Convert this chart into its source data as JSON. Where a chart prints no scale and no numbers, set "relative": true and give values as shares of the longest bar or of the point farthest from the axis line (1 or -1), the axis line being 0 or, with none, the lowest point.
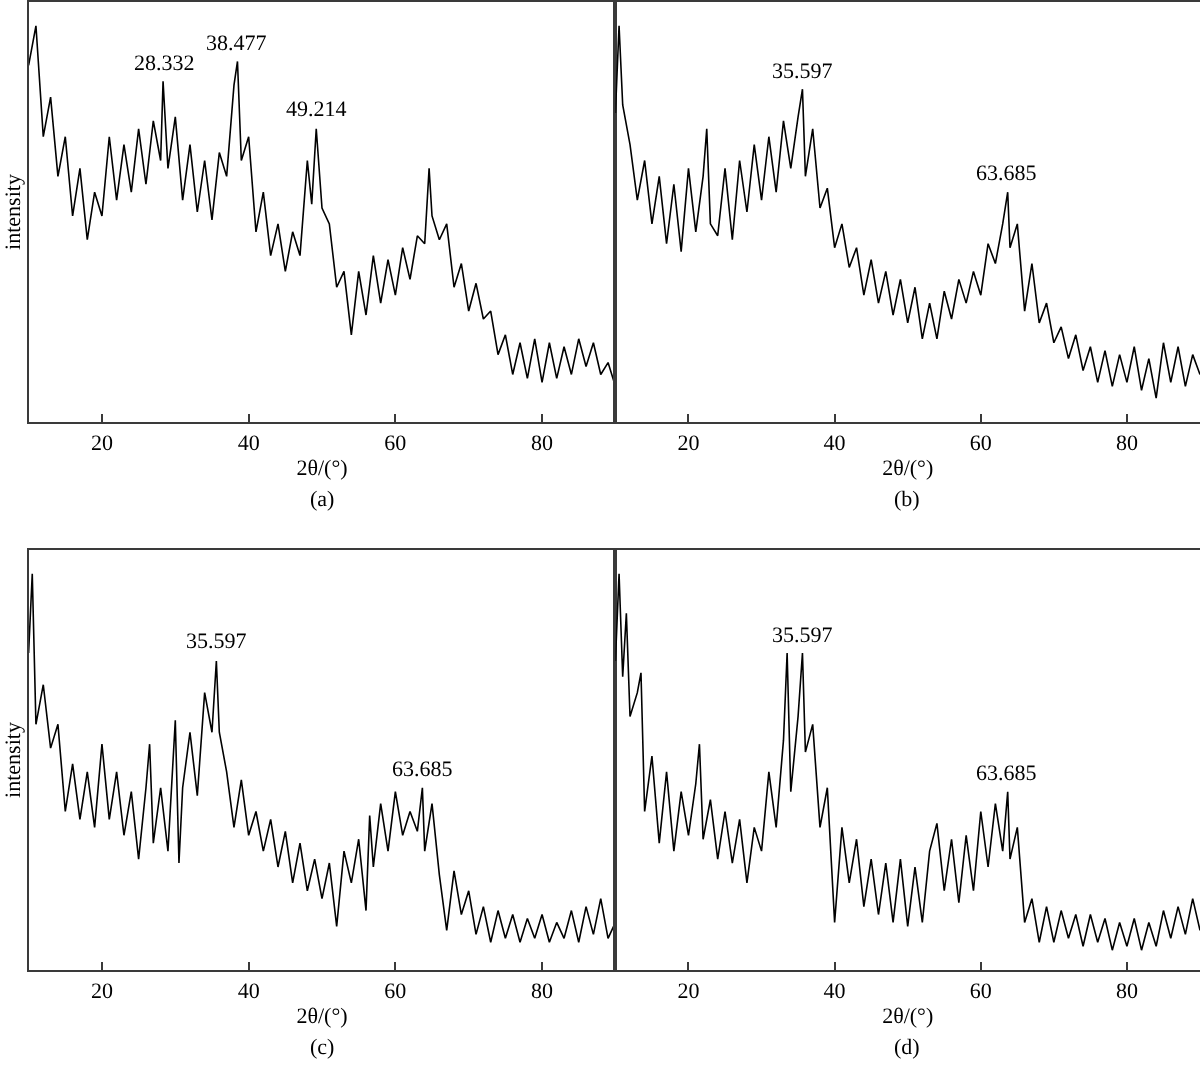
{
  "chart_data": [
    {
      "type": "line",
      "relative": true,
      "tick_labels": "x",
      "xlabel": "2θ/(°)",
      "ylabel": "intensity",
      "xlim": [
        10,
        90
      ],
      "xticks": [
        20,
        40,
        60,
        80
      ],
      "x": [
        10,
        11,
        12,
        13,
        14,
        15,
        16,
        17,
        18,
        19,
        20,
        21,
        22,
        23,
        24,
        25,
        26,
        27,
        28,
        28.332,
        29,
        30,
        31,
        32,
        33,
        34,
        35,
        36,
        37,
        38,
        38.477,
        39,
        40,
        41,
        42,
        43,
        44,
        45,
        46,
        47,
        48,
        48.6,
        49.214,
        50,
        51,
        52,
        53,
        54,
        55,
        56,
        57,
        58,
        59,
        60,
        61,
        62,
        63,
        64,
        64.6,
        65,
        66,
        67,
        68,
        69,
        70,
        71,
        72,
        73,
        74,
        75,
        76,
        77,
        78,
        79,
        80,
        81,
        82,
        83,
        84,
        85,
        86,
        87,
        88,
        89,
        90
      ],
      "series": [
        {
          "color": "#000000",
          "values": [
            0.9,
            1.0,
            0.72,
            0.82,
            0.62,
            0.72,
            0.52,
            0.64,
            0.46,
            0.58,
            0.52,
            0.72,
            0.56,
            0.7,
            0.58,
            0.74,
            0.6,
            0.76,
            0.66,
            0.86,
            0.64,
            0.77,
            0.56,
            0.7,
            0.53,
            0.66,
            0.51,
            0.68,
            0.62,
            0.85,
            0.91,
            0.66,
            0.72,
            0.48,
            0.58,
            0.42,
            0.5,
            0.38,
            0.48,
            0.42,
            0.66,
            0.55,
            0.74,
            0.54,
            0.5,
            0.34,
            0.38,
            0.22,
            0.38,
            0.27,
            0.42,
            0.3,
            0.41,
            0.32,
            0.44,
            0.36,
            0.47,
            0.45,
            0.64,
            0.52,
            0.46,
            0.5,
            0.34,
            0.4,
            0.28,
            0.35,
            0.26,
            0.28,
            0.17,
            0.22,
            0.12,
            0.2,
            0.11,
            0.21,
            0.1,
            0.2,
            0.11,
            0.19,
            0.12,
            0.21,
            0.14,
            0.2,
            0.12,
            0.15,
            0.09
          ]
        }
      ],
      "annotations": [
        {
          "text": "28.332",
          "x": 28.332,
          "y": 0.86
        },
        {
          "text": "38.477",
          "x": 38.477,
          "y": 0.91
        },
        {
          "text": "49.214",
          "x": 49.214,
          "y": 0.74
        },
        "(a)"
      ]
    },
    {
      "type": "line",
      "relative": true,
      "tick_labels": "x",
      "xlabel": "2θ/(°)",
      "xlim": [
        10,
        90
      ],
      "xticks": [
        20,
        40,
        60,
        80
      ],
      "x": [
        10,
        10.5,
        11,
        12,
        13,
        14,
        15,
        16,
        17,
        18,
        19,
        20,
        21,
        22,
        22.5,
        23,
        24,
        25,
        26,
        27,
        28,
        29,
        30,
        31,
        32,
        33,
        34,
        35,
        35.597,
        36,
        37,
        38,
        39,
        40,
        41,
        42,
        43,
        44,
        45,
        46,
        47,
        48,
        49,
        50,
        51,
        52,
        53,
        54,
        55,
        56,
        57,
        58,
        59,
        60,
        61,
        62,
        63,
        63.685,
        64,
        65,
        66,
        67,
        68,
        69,
        70,
        71,
        72,
        73,
        74,
        75,
        76,
        77,
        78,
        79,
        80,
        81,
        82,
        83,
        84,
        85,
        86,
        87,
        88,
        89,
        90
      ],
      "series": [
        {
          "color": "#000000",
          "values": [
            0.78,
            1.0,
            0.8,
            0.7,
            0.56,
            0.66,
            0.5,
            0.62,
            0.45,
            0.6,
            0.43,
            0.64,
            0.48,
            0.62,
            0.74,
            0.5,
            0.47,
            0.64,
            0.46,
            0.66,
            0.53,
            0.7,
            0.56,
            0.72,
            0.58,
            0.76,
            0.64,
            0.77,
            0.84,
            0.62,
            0.74,
            0.54,
            0.59,
            0.44,
            0.5,
            0.39,
            0.44,
            0.32,
            0.41,
            0.3,
            0.38,
            0.27,
            0.36,
            0.25,
            0.34,
            0.21,
            0.3,
            0.21,
            0.33,
            0.26,
            0.36,
            0.3,
            0.38,
            0.32,
            0.45,
            0.4,
            0.5,
            0.58,
            0.44,
            0.5,
            0.28,
            0.4,
            0.25,
            0.3,
            0.2,
            0.24,
            0.16,
            0.22,
            0.13,
            0.19,
            0.1,
            0.18,
            0.09,
            0.17,
            0.1,
            0.19,
            0.08,
            0.16,
            0.06,
            0.2,
            0.1,
            0.19,
            0.09,
            0.17,
            0.12
          ]
        }
      ],
      "annotations": [
        {
          "text": "35.597",
          "x": 35.597,
          "y": 0.84
        },
        {
          "text": "63.685",
          "x": 63.685,
          "y": 0.58
        },
        "(b)"
      ]
    },
    {
      "type": "line",
      "relative": true,
      "tick_labels": "x",
      "xlabel": "2θ/(°)",
      "ylabel": "intensity",
      "xlim": [
        10,
        90
      ],
      "xticks": [
        20,
        40,
        60,
        80
      ],
      "x": [
        10,
        10.5,
        11,
        12,
        13,
        14,
        15,
        16,
        17,
        18,
        19,
        20,
        21,
        22,
        23,
        24,
        25,
        26,
        26.5,
        27,
        28,
        29,
        30,
        30.5,
        31,
        32,
        33,
        34,
        35,
        35.597,
        36,
        37,
        38,
        39,
        40,
        41,
        42,
        43,
        44,
        45,
        46,
        47,
        48,
        49,
        50,
        51,
        52,
        53,
        54,
        55,
        56,
        56.5,
        57,
        58,
        59,
        60,
        61,
        62,
        63,
        63.685,
        64,
        65,
        66,
        67,
        68,
        69,
        70,
        71,
        72,
        73,
        74,
        75,
        76,
        77,
        78,
        79,
        80,
        81,
        82,
        83,
        84,
        85,
        86,
        87,
        88,
        89,
        90
      ],
      "series": [
        {
          "color": "#000000",
          "values": [
            0.8,
            1.0,
            0.62,
            0.72,
            0.56,
            0.62,
            0.4,
            0.52,
            0.38,
            0.5,
            0.36,
            0.57,
            0.38,
            0.5,
            0.34,
            0.45,
            0.28,
            0.46,
            0.57,
            0.32,
            0.46,
            0.3,
            0.63,
            0.27,
            0.46,
            0.6,
            0.44,
            0.7,
            0.6,
            0.78,
            0.6,
            0.5,
            0.36,
            0.48,
            0.34,
            0.4,
            0.3,
            0.38,
            0.26,
            0.35,
            0.22,
            0.32,
            0.2,
            0.28,
            0.18,
            0.27,
            0.11,
            0.3,
            0.22,
            0.33,
            0.15,
            0.39,
            0.26,
            0.42,
            0.3,
            0.45,
            0.34,
            0.4,
            0.35,
            0.46,
            0.3,
            0.42,
            0.24,
            0.1,
            0.25,
            0.14,
            0.2,
            0.09,
            0.16,
            0.07,
            0.15,
            0.08,
            0.14,
            0.07,
            0.13,
            0.08,
            0.14,
            0.07,
            0.12,
            0.08,
            0.15,
            0.07,
            0.16,
            0.09,
            0.18,
            0.08,
            0.12
          ]
        }
      ],
      "annotations": [
        {
          "text": "35.597",
          "x": 35.597,
          "y": 0.78
        },
        {
          "text": "63.685",
          "x": 63.685,
          "y": 0.46
        },
        "(c)"
      ]
    },
    {
      "type": "line",
      "relative": true,
      "tick_labels": "x",
      "xlabel": "2θ/(°)",
      "xlim": [
        10,
        90
      ],
      "xticks": [
        20,
        40,
        60,
        80
      ],
      "x": [
        10,
        10.5,
        11,
        11.5,
        12,
        13,
        13.5,
        14,
        15,
        16,
        17,
        18,
        19,
        20,
        21,
        21.5,
        22,
        23,
        24,
        25,
        26,
        27,
        28,
        29,
        30,
        31,
        32,
        33,
        33.5,
        34,
        35,
        35.597,
        36,
        37,
        38,
        39,
        40,
        41,
        42,
        43,
        44,
        45,
        46,
        47,
        48,
        49,
        50,
        51,
        52,
        53,
        54,
        55,
        56,
        57,
        58,
        59,
        60,
        61,
        62,
        63,
        63.685,
        64,
        65,
        66,
        67,
        68,
        69,
        70,
        71,
        72,
        73,
        74,
        75,
        76,
        77,
        78,
        79,
        80,
        81,
        82,
        83,
        84,
        85,
        86,
        87,
        88,
        89,
        90
      ],
      "series": [
        {
          "color": "#000000",
          "values": [
            0.78,
            1.0,
            0.74,
            0.9,
            0.64,
            0.7,
            0.75,
            0.4,
            0.54,
            0.32,
            0.5,
            0.3,
            0.45,
            0.34,
            0.47,
            0.57,
            0.33,
            0.43,
            0.28,
            0.4,
            0.27,
            0.38,
            0.22,
            0.36,
            0.3,
            0.5,
            0.36,
            0.58,
            0.8,
            0.45,
            0.64,
            0.8,
            0.55,
            0.62,
            0.36,
            0.46,
            0.12,
            0.36,
            0.22,
            0.33,
            0.16,
            0.28,
            0.14,
            0.27,
            0.12,
            0.28,
            0.11,
            0.26,
            0.12,
            0.3,
            0.37,
            0.2,
            0.33,
            0.17,
            0.34,
            0.2,
            0.4,
            0.26,
            0.42,
            0.3,
            0.45,
            0.28,
            0.36,
            0.12,
            0.18,
            0.07,
            0.16,
            0.07,
            0.15,
            0.08,
            0.14,
            0.06,
            0.14,
            0.07,
            0.13,
            0.05,
            0.12,
            0.06,
            0.13,
            0.05,
            0.12,
            0.06,
            0.15,
            0.08,
            0.16,
            0.09,
            0.18,
            0.1
          ]
        }
      ],
      "annotations": [
        {
          "text": "35.597",
          "x": 35.597,
          "y": 0.8
        },
        {
          "text": "63.685",
          "x": 63.685,
          "y": 0.45
        },
        "(d)"
      ]
    }
  ]
}
